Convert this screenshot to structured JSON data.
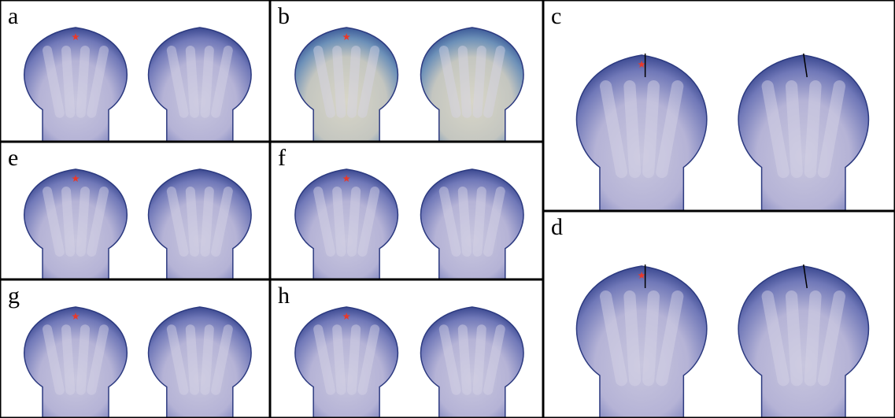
{
  "panels": [
    {
      "label": "a"
    },
    {
      "label": "b"
    },
    {
      "label": "c"
    },
    {
      "label": "d"
    },
    {
      "label": "e"
    },
    {
      "label": "f"
    },
    {
      "label": "g"
    },
    {
      "label": "h"
    }
  ]
}
